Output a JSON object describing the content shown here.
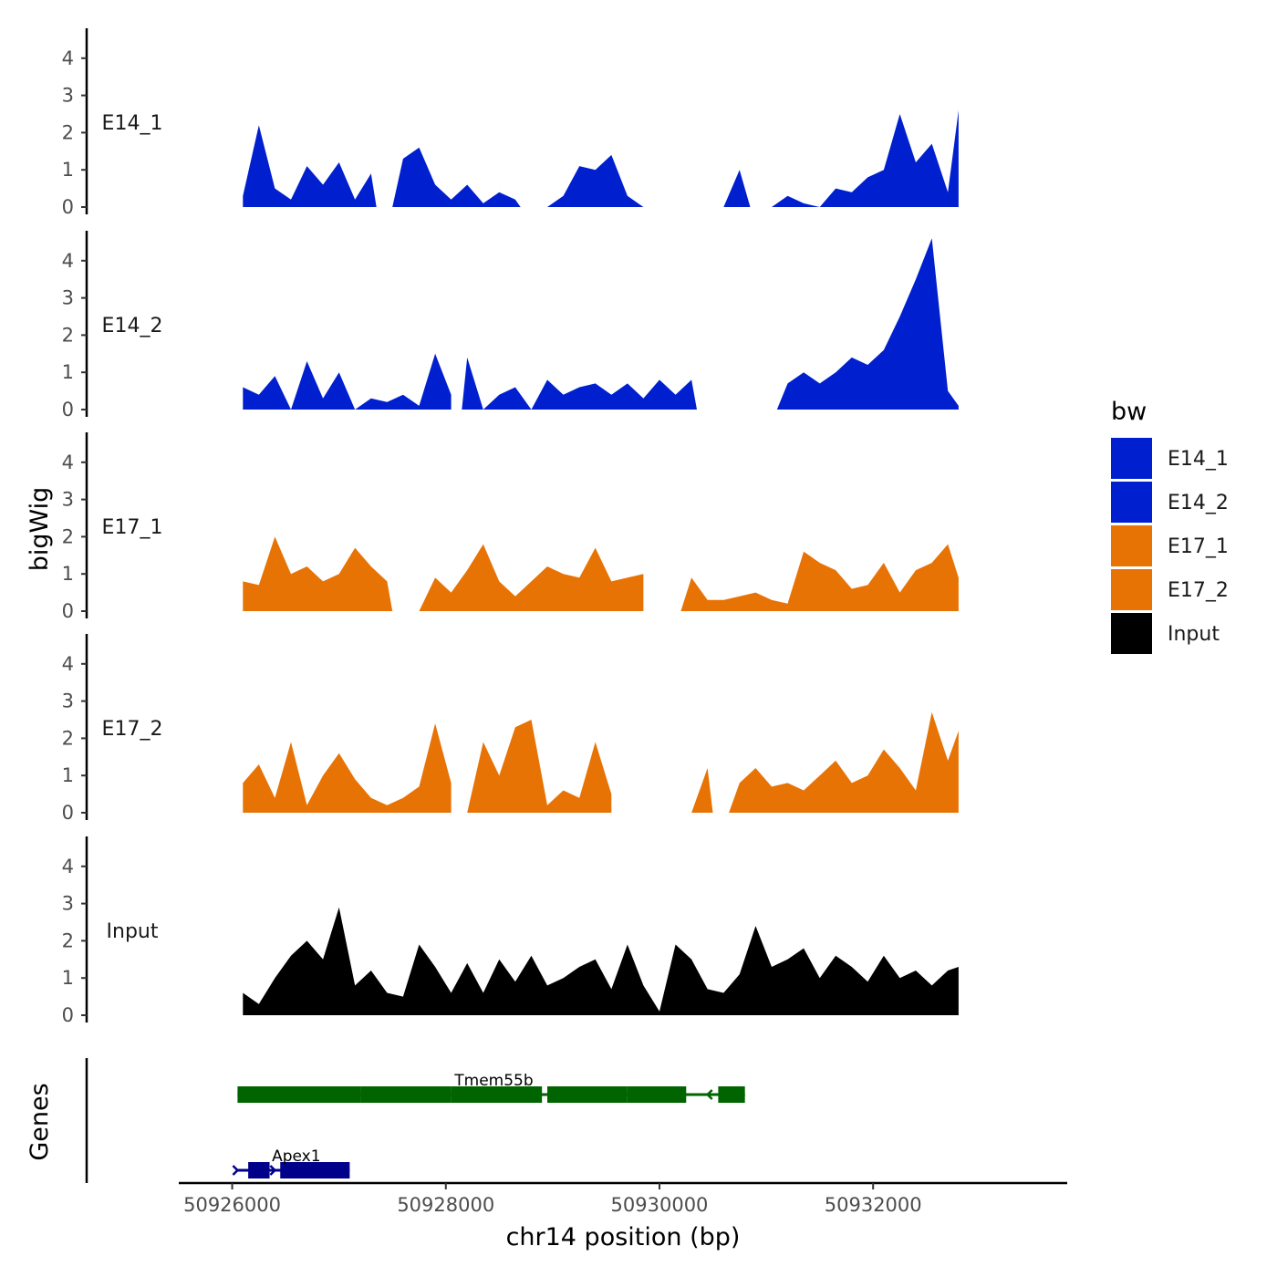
{
  "chart_data": {
    "type": "area",
    "title": "",
    "xlabel": "chr14 position (bp)",
    "ylabel": "bigWig",
    "genes_label": "Genes",
    "xlim": [
      50925500,
      50933800
    ],
    "x_ticks": [
      50926000,
      50928000,
      50930000,
      50932000
    ],
    "x_tick_labels": [
      "50926000",
      "50928000",
      "50930000",
      "50932000"
    ],
    "ylim": [
      0,
      4.8
    ],
    "y_ticks": [
      0,
      1,
      2,
      3,
      4
    ],
    "y_tick_labels": [
      "0",
      "1",
      "2",
      "3",
      "4"
    ],
    "series_x": [
      50926100,
      50926250,
      50926400,
      50926550,
      50926700,
      50926850,
      50927000,
      50927150,
      50927300,
      50927450,
      50927600,
      50927750,
      50927900,
      50928050,
      50928200,
      50928350,
      50928500,
      50928650,
      50928800,
      50928950,
      50929100,
      50929250,
      50929400,
      50929550,
      50929700,
      50929850,
      50930000,
      50930150,
      50930300,
      50930450,
      50930600,
      50930750,
      50930900,
      50931050,
      50931200,
      50931350,
      50931500,
      50931650,
      50931800,
      50931950,
      50932100,
      50932250,
      50932400,
      50932550,
      50932700,
      50932800
    ],
    "series": [
      {
        "name": "E14_1",
        "color": "#0020d0",
        "values": [
          0.3,
          2.2,
          0.5,
          0.2,
          1.1,
          0.6,
          1.2,
          0.2,
          0.9,
          1.5,
          1.3,
          1.6,
          0.6,
          0.2,
          0.6,
          0.1,
          0.4,
          0.2,
          0.3,
          0.1,
          0.3,
          1.1,
          1.0,
          1.4,
          0.3,
          0.0,
          0.6,
          0.0,
          0.0,
          0.0,
          0.0,
          1.0,
          0.7,
          0.9,
          0.3,
          0.1,
          0.0,
          0.5,
          0.4,
          0.8,
          1.0,
          2.5,
          1.2,
          1.7,
          0.4,
          2.6
        ],
        "gaps": [
          [
            50927350,
            50927500
          ],
          [
            50928700,
            50928950
          ],
          [
            50929850,
            50930150
          ],
          [
            50930850,
            50931050
          ]
        ]
      },
      {
        "name": "E14_2",
        "color": "#0020d0",
        "values": [
          0.6,
          0.4,
          0.9,
          0.0,
          1.3,
          0.3,
          1.0,
          0.0,
          0.3,
          0.2,
          0.4,
          0.1,
          1.5,
          0.4,
          1.4,
          0.0,
          0.4,
          0.6,
          0.0,
          0.8,
          0.4,
          0.6,
          0.7,
          0.4,
          0.7,
          0.3,
          0.8,
          0.4,
          0.8,
          0.2,
          0.0,
          0.0,
          0.6,
          1.3,
          0.7,
          1.0,
          0.7,
          1.0,
          1.4,
          1.2,
          1.6,
          2.5,
          3.5,
          4.6,
          0.5,
          0.1
        ],
        "gaps": [
          [
            50928050,
            50928150
          ],
          [
            50930350,
            50930450
          ],
          [
            50930700,
            50931100
          ]
        ]
      },
      {
        "name": "E17_1",
        "color": "#e87305",
        "values": [
          0.8,
          0.7,
          2.0,
          1.0,
          1.2,
          0.8,
          1.0,
          1.7,
          1.2,
          0.8,
          0.3,
          0.0,
          0.9,
          0.5,
          1.1,
          1.8,
          0.8,
          0.4,
          0.8,
          1.2,
          1.0,
          0.9,
          1.7,
          0.8,
          0.9,
          1.0,
          0.0,
          0.0,
          0.9,
          0.3,
          0.3,
          0.4,
          0.5,
          0.3,
          0.2,
          1.6,
          1.3,
          1.1,
          0.6,
          0.7,
          1.3,
          0.5,
          1.1,
          1.3,
          1.8,
          0.9
        ],
        "gaps": [
          [
            50927500,
            50927650
          ],
          [
            50929850,
            50930200
          ]
        ]
      },
      {
        "name": "E17_2",
        "color": "#e87305",
        "values": [
          0.8,
          1.3,
          0.4,
          1.9,
          0.2,
          1.0,
          1.6,
          0.9,
          0.4,
          0.2,
          0.4,
          0.7,
          2.4,
          0.8,
          0.0,
          1.9,
          1.0,
          2.3,
          2.5,
          0.2,
          0.6,
          0.4,
          1.9,
          0.5,
          0.0,
          0.0,
          0.0,
          0.0,
          0.0,
          1.2,
          0.2,
          0.8,
          1.2,
          0.7,
          0.8,
          0.6,
          1.0,
          1.4,
          0.8,
          1.0,
          1.7,
          1.2,
          0.6,
          2.7,
          1.4,
          2.2
        ],
        "gaps": [
          [
            50928050,
            50928200
          ],
          [
            50929550,
            50930200
          ],
          [
            50930500,
            50930650
          ]
        ]
      },
      {
        "name": "Input",
        "color": "#000000",
        "values": [
          0.6,
          0.3,
          1.0,
          1.6,
          2.0,
          1.5,
          2.9,
          0.8,
          1.2,
          0.6,
          0.5,
          1.9,
          1.3,
          0.6,
          1.4,
          0.6,
          1.5,
          0.9,
          1.6,
          0.8,
          1.0,
          1.3,
          1.5,
          0.7,
          1.9,
          0.8,
          0.1,
          1.9,
          1.5,
          0.7,
          0.6,
          1.1,
          2.4,
          1.3,
          1.5,
          1.8,
          1.0,
          1.6,
          1.3,
          0.9,
          1.6,
          1.0,
          1.2,
          0.8,
          1.2,
          1.3
        ],
        "gaps": []
      }
    ],
    "genes": [
      {
        "name": "Tmem55b",
        "color": "#006400",
        "strand": "-",
        "start": 50926050,
        "end": 50930800,
        "exons": [
          [
            50926050,
            50927200
          ],
          [
            50927200,
            50928050
          ],
          [
            50928050,
            50928900
          ],
          [
            50928950,
            50929700
          ],
          [
            50929700,
            50930250
          ],
          [
            50930550,
            50930800
          ]
        ]
      },
      {
        "name": "Apex1",
        "color": "#00008b",
        "strand": "+",
        "start": 50926050,
        "end": 50927100,
        "exons": [
          [
            50926150,
            50926350
          ],
          [
            50926450,
            50927100
          ]
        ]
      }
    ],
    "legend": {
      "title": "bw",
      "position": "right",
      "entries": [
        {
          "label": "E14_1",
          "color": "#0020d0"
        },
        {
          "label": "E14_2",
          "color": "#0020d0"
        },
        {
          "label": "E17_1",
          "color": "#e87305"
        },
        {
          "label": "E17_2",
          "color": "#e87305"
        },
        {
          "label": "Input",
          "color": "#000000"
        }
      ]
    },
    "grid": false
  }
}
